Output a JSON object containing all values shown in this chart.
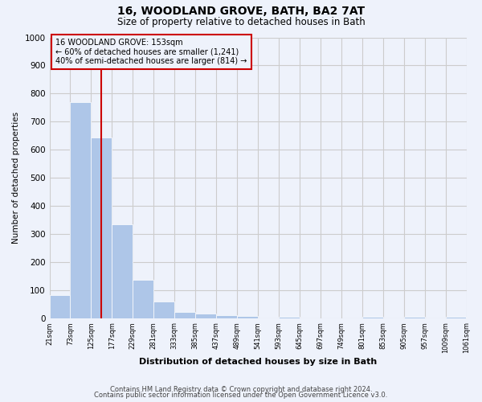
{
  "title": "16, WOODLAND GROVE, BATH, BA2 7AT",
  "subtitle": "Size of property relative to detached houses in Bath",
  "xlabel": "Distribution of detached houses by size in Bath",
  "ylabel": "Number of detached properties",
  "bar_values": [
    83,
    770,
    643,
    334,
    135,
    60,
    22,
    15,
    9,
    6,
    0,
    5,
    0,
    0,
    0,
    5,
    0,
    5,
    0,
    5
  ],
  "bar_labels": [
    "21sqm",
    "73sqm",
    "125sqm",
    "177sqm",
    "229sqm",
    "281sqm",
    "333sqm",
    "385sqm",
    "437sqm",
    "489sqm",
    "541sqm",
    "593sqm",
    "645sqm",
    "697sqm",
    "749sqm",
    "801sqm",
    "853sqm",
    "905sqm",
    "957sqm",
    "1009sqm",
    "1061sqm"
  ],
  "bar_color": "#aec6e8",
  "vline_x": 2,
  "vline_color": "#cc0000",
  "annotation_box_text": "16 WOODLAND GROVE: 153sqm\n← 60% of detached houses are smaller (1,241)\n40% of semi-detached houses are larger (814) →",
  "box_edge_color": "#cc0000",
  "ylim": [
    0,
    1000
  ],
  "yticks": [
    0,
    100,
    200,
    300,
    400,
    500,
    600,
    700,
    800,
    900,
    1000
  ],
  "grid_color": "#cccccc",
  "bg_color": "#eef2fb",
  "footnote1": "Contains HM Land Registry data © Crown copyright and database right 2024.",
  "footnote2": "Contains public sector information licensed under the Open Government Licence v3.0."
}
